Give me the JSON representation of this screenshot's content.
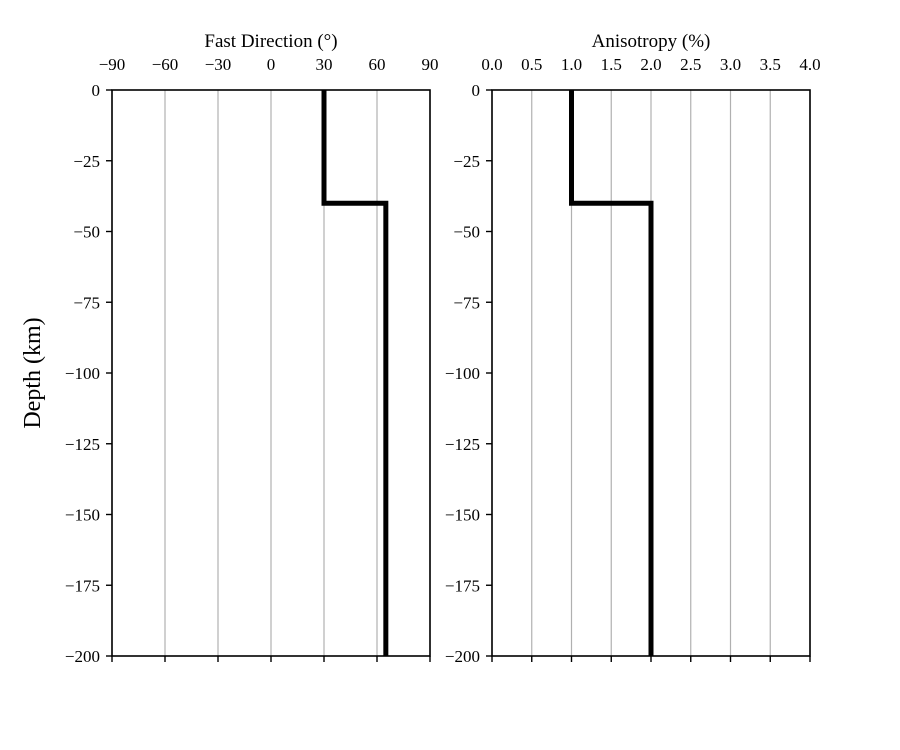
{
  "figure": {
    "shared_ylabel": "Depth (km)"
  },
  "chart_data": [
    {
      "type": "line",
      "title": "",
      "xlabel": "Fast Direction (°)",
      "ylabel": "Depth (km)",
      "xlim": [
        -90,
        90
      ],
      "ylim": [
        -200,
        0
      ],
      "x_ticks": [
        -90,
        -60,
        -30,
        0,
        30,
        60,
        90
      ],
      "x_tick_labels": [
        "−90",
        "−60",
        "−30",
        "0",
        "30",
        "60",
        "90"
      ],
      "y_ticks": [
        0,
        -25,
        -50,
        -75,
        -100,
        -125,
        -150,
        -175,
        -200
      ],
      "y_tick_labels": [
        "0",
        "−25",
        "−50",
        "−75",
        "−100",
        "−125",
        "−150",
        "−175",
        "−200"
      ],
      "x_axis_position": "top",
      "grid": "vertical",
      "series": [
        {
          "color": "#000000",
          "x": [
            30,
            30,
            65,
            65
          ],
          "y": [
            0,
            -40,
            -40,
            -200
          ]
        }
      ]
    },
    {
      "type": "line",
      "title": "",
      "xlabel": "Anisotropy (%)",
      "ylabel": "",
      "xlim": [
        0,
        4
      ],
      "ylim": [
        -200,
        0
      ],
      "x_ticks": [
        0,
        0.5,
        1,
        1.5,
        2,
        2.5,
        3,
        3.5,
        4
      ],
      "x_tick_labels": [
        "0.0",
        "0.5",
        "1.0",
        "1.5",
        "2.0",
        "2.5",
        "3.0",
        "3.5",
        "4.0"
      ],
      "y_ticks": [
        0,
        -25,
        -50,
        -75,
        -100,
        -125,
        -150,
        -175,
        -200
      ],
      "y_tick_labels": [
        "0",
        "−25",
        "−50",
        "−75",
        "−100",
        "−125",
        "−150",
        "−175",
        "−200"
      ],
      "x_axis_position": "top",
      "grid": "vertical",
      "series": [
        {
          "color": "#000000",
          "x": [
            1,
            1,
            2,
            2
          ],
          "y": [
            0,
            -40,
            -40,
            -200
          ]
        }
      ]
    }
  ]
}
